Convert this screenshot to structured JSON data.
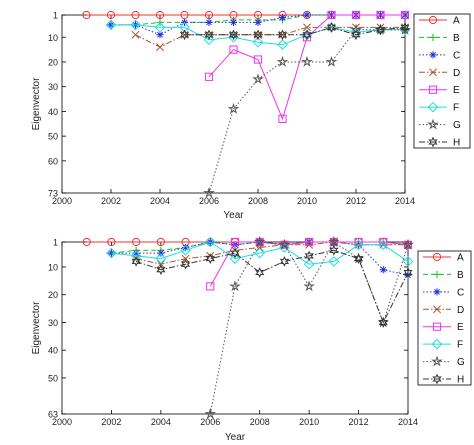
{
  "chart_data": [
    {
      "type": "line",
      "xlabel": "Year",
      "ylabel": "Eigenvector",
      "xlim": [
        2000,
        2014
      ],
      "ylim": [
        1,
        73
      ],
      "y_reversed": true,
      "xticks": [
        2000,
        2002,
        2004,
        2006,
        2008,
        2010,
        2012,
        2014
      ],
      "yticks": [
        1,
        10,
        20,
        30,
        40,
        50,
        60,
        73
      ],
      "legend": "right",
      "series": [
        {
          "name": "A",
          "color": "#ee3333",
          "dash": "solid",
          "marker": "circle",
          "x": [
            2001,
            2002,
            2003,
            2004,
            2005,
            2006,
            2007,
            2008,
            2009,
            2010,
            2011,
            2012,
            2013,
            2014
          ],
          "y": [
            1,
            1,
            1,
            1,
            1,
            1,
            1,
            1,
            1,
            1,
            1,
            1,
            1,
            1
          ]
        },
        {
          "name": "B",
          "color": "#22bb22",
          "dash": "dashed",
          "marker": "plus",
          "x": [
            2002,
            2003,
            2004,
            2005,
            2006,
            2007,
            2008,
            2009,
            2010,
            2011,
            2012,
            2013,
            2014
          ],
          "y": [
            5,
            5,
            4,
            4,
            4,
            3,
            3,
            3,
            1,
            1,
            1,
            1,
            1
          ]
        },
        {
          "name": "C",
          "color": "#2233dd",
          "dash": "dotted",
          "marker": "asterisk",
          "x": [
            2002,
            2003,
            2004,
            2005,
            2006,
            2007,
            2008,
            2009,
            2010,
            2011,
            2012,
            2013,
            2014
          ],
          "y": [
            5,
            5,
            9,
            4,
            4,
            4,
            4,
            2,
            1,
            1,
            1,
            1,
            1
          ]
        },
        {
          "name": "D",
          "color": "#aa5533",
          "dash": "dashdot",
          "marker": "x",
          "x": [
            2003,
            2004,
            2005,
            2006,
            2007,
            2008,
            2009,
            2010,
            2011,
            2012,
            2013,
            2014
          ],
          "y": [
            9,
            14,
            9,
            9,
            9,
            9,
            9,
            6,
            6,
            6,
            6,
            6
          ]
        },
        {
          "name": "E",
          "color": "#ee33ee",
          "dash": "solid",
          "marker": "square",
          "x": [
            2006,
            2007,
            2008,
            2009,
            2010,
            2011,
            2012,
            2013,
            2014
          ],
          "y": [
            26,
            15,
            19,
            43,
            10,
            1,
            1,
            1,
            1
          ]
        },
        {
          "name": "F",
          "color": "#22dddd",
          "dash": "solid",
          "marker": "diamond",
          "x": [
            2002,
            2003,
            2004,
            2005,
            2006,
            2007,
            2008,
            2009,
            2010,
            2011,
            2012,
            2013,
            2014
          ],
          "y": [
            5,
            5,
            6,
            6,
            11,
            10,
            12,
            13,
            9,
            6,
            8,
            7,
            7
          ]
        },
        {
          "name": "G",
          "color": "#555555",
          "dash": "dotted",
          "marker": "star",
          "x": [
            2006,
            2007,
            2008,
            2009,
            2010,
            2011,
            2012,
            2013,
            2014
          ],
          "y": [
            73,
            39,
            27,
            20,
            20,
            20,
            7,
            7,
            7
          ]
        },
        {
          "name": "H",
          "color": "#333333",
          "dash": "dashdot",
          "marker": "hexagram",
          "x": [
            2005,
            2006,
            2007,
            2008,
            2009,
            2010,
            2011,
            2012,
            2013,
            2014
          ],
          "y": [
            9,
            9,
            9,
            9,
            9,
            9,
            6,
            9,
            7,
            6
          ]
        }
      ]
    },
    {
      "type": "line",
      "xlabel": "Year",
      "ylabel": "Eigenvector",
      "xlim": [
        2000,
        2014
      ],
      "ylim": [
        1,
        63
      ],
      "y_reversed": true,
      "xticks": [
        2000,
        2002,
        2004,
        2006,
        2008,
        2010,
        2012,
        2014
      ],
      "yticks": [
        1,
        10,
        20,
        30,
        40,
        50,
        63
      ],
      "legend": "right",
      "series": [
        {
          "name": "A",
          "color": "#ee3333",
          "dash": "solid",
          "marker": "circle",
          "x": [
            2001,
            2002,
            2003,
            2004,
            2005,
            2006,
            2007,
            2008,
            2009,
            2010,
            2011,
            2012,
            2013,
            2014
          ],
          "y": [
            1,
            1,
            1,
            1,
            1,
            1,
            1,
            1,
            2,
            1,
            1,
            1,
            1,
            2
          ]
        },
        {
          "name": "B",
          "color": "#22bb22",
          "dash": "dashed",
          "marker": "plus",
          "x": [
            2002,
            2003,
            2004,
            2005,
            2006,
            2007,
            2008,
            2009,
            2010,
            2011,
            2012,
            2013,
            2014
          ],
          "y": [
            5,
            4,
            4,
            3,
            1,
            2,
            1,
            2,
            1,
            1,
            1,
            1,
            2
          ]
        },
        {
          "name": "C",
          "color": "#2233dd",
          "dash": "dotted",
          "marker": "asterisk",
          "x": [
            2002,
            2003,
            2004,
            2005,
            2006,
            2007,
            2008,
            2009,
            2010,
            2011,
            2012,
            2013,
            2014
          ],
          "y": [
            5,
            5,
            5,
            3,
            1,
            2,
            1,
            2,
            1,
            1,
            2,
            11,
            13
          ]
        },
        {
          "name": "D",
          "color": "#aa5533",
          "dash": "dashdot",
          "marker": "x",
          "x": [
            2003,
            2004,
            2005,
            2006,
            2007,
            2008,
            2009,
            2010,
            2011,
            2012,
            2013,
            2014
          ],
          "y": [
            7,
            9,
            7,
            6,
            4,
            3,
            2,
            2,
            1,
            2,
            2,
            2
          ]
        },
        {
          "name": "E",
          "color": "#ee33ee",
          "dash": "solid",
          "marker": "square",
          "x": [
            2006,
            2007,
            2008,
            2009,
            2010,
            2011,
            2012,
            2013,
            2014
          ],
          "y": [
            17,
            1,
            1,
            2,
            1,
            1,
            1,
            1,
            2
          ]
        },
        {
          "name": "F",
          "color": "#22dddd",
          "dash": "solid",
          "marker": "diamond",
          "x": [
            2002,
            2003,
            2004,
            2005,
            2006,
            2007,
            2008,
            2009,
            2010,
            2011,
            2012,
            2013,
            2014
          ],
          "y": [
            5,
            6,
            7,
            4,
            1,
            7,
            5,
            3,
            9,
            8,
            2,
            2,
            8
          ]
        },
        {
          "name": "G",
          "color": "#555555",
          "dash": "dotted",
          "marker": "star",
          "x": [
            2006,
            2007,
            2008,
            2009,
            2010,
            2011,
            2012,
            2013,
            2014
          ],
          "y": [
            63,
            17,
            1,
            2,
            17,
            1,
            7,
            30,
            2
          ]
        },
        {
          "name": "H",
          "color": "#333333",
          "dash": "dashdot",
          "marker": "hexagram",
          "x": [
            2003,
            2004,
            2005,
            2006,
            2007,
            2008,
            2009,
            2010,
            2011,
            2012,
            2013,
            2014
          ],
          "y": [
            8,
            11,
            9,
            7,
            5,
            12,
            8,
            6,
            4,
            7,
            30,
            12
          ]
        }
      ]
    }
  ]
}
